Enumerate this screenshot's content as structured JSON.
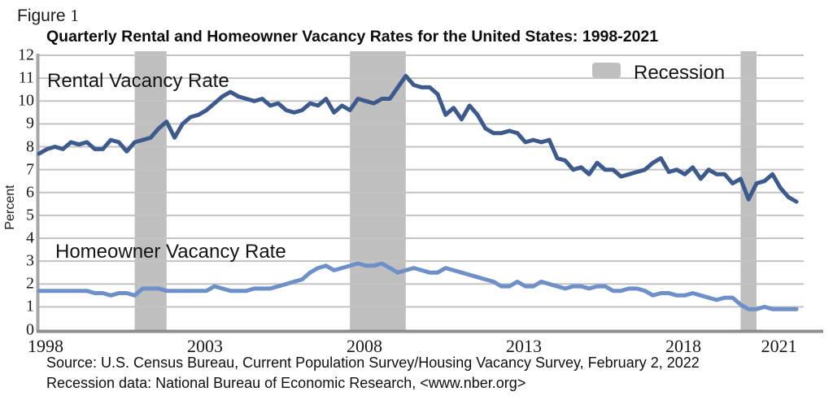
{
  "figure": {
    "label": "Figure",
    "number": "1"
  },
  "source": {
    "line1": "Source: U.S. Census Bureau, Current Population Survey/Housing Vacancy Survey, February 2, 2022",
    "line2": "Recession data: National Bureau of Economic Research, <www.nber.org>"
  },
  "colors": {
    "rental_line": "#3C5A8C",
    "homeowner_line": "#6E90C8",
    "recession_band": "#BFBFBF",
    "gridline": "#C3C3C3",
    "axis_left": "#A6A6A6",
    "axis_bottom": "#8C8C8C"
  },
  "chart_data": {
    "type": "line",
    "title": "Quarterly Rental and Homeowner Vacancy Rates for the United States: 1998-2021",
    "xlabel": "",
    "ylabel": "Percent",
    "ylim": [
      0,
      12
    ],
    "yticks": [
      0,
      1,
      2,
      3,
      4,
      5,
      6,
      7,
      8,
      9,
      10,
      11,
      12
    ],
    "xticks": [
      1998,
      2003,
      2008,
      2013,
      2018,
      2021
    ],
    "x_start_year": 1998,
    "points_per_year": 4,
    "x_range": "1998Q1-2021Q4",
    "grid": "horizontal",
    "legend_label": "Recession",
    "legend_position": "top-right-inside",
    "series": [
      {
        "name": "Rental Vacancy Rate",
        "values": [
          7.7,
          7.9,
          8.0,
          7.9,
          8.2,
          8.1,
          8.2,
          7.9,
          7.9,
          8.3,
          8.2,
          7.8,
          8.2,
          8.3,
          8.4,
          8.8,
          9.1,
          8.4,
          9.0,
          9.3,
          9.4,
          9.6,
          9.9,
          10.2,
          10.4,
          10.2,
          10.1,
          10.0,
          10.1,
          9.8,
          9.9,
          9.6,
          9.5,
          9.6,
          9.9,
          9.8,
          10.1,
          9.5,
          9.8,
          9.6,
          10.1,
          10.0,
          9.9,
          10.1,
          10.1,
          10.6,
          11.1,
          10.7,
          10.6,
          10.6,
          10.3,
          9.4,
          9.7,
          9.2,
          9.8,
          9.4,
          8.8,
          8.6,
          8.6,
          8.7,
          8.6,
          8.2,
          8.3,
          8.2,
          8.3,
          7.5,
          7.4,
          7.0,
          7.1,
          6.8,
          7.3,
          7.0,
          7.0,
          6.7,
          6.8,
          6.9,
          7.0,
          7.3,
          7.5,
          6.9,
          7.0,
          6.8,
          7.1,
          6.6,
          7.0,
          6.8,
          6.8,
          6.4,
          6.6,
          5.7,
          6.4,
          6.5,
          6.8,
          6.2,
          5.8,
          5.6
        ]
      },
      {
        "name": "Homeowner Vacancy Rate",
        "values": [
          1.7,
          1.7,
          1.7,
          1.7,
          1.7,
          1.7,
          1.7,
          1.6,
          1.6,
          1.5,
          1.6,
          1.6,
          1.5,
          1.8,
          1.8,
          1.8,
          1.7,
          1.7,
          1.7,
          1.7,
          1.7,
          1.7,
          1.9,
          1.8,
          1.7,
          1.7,
          1.7,
          1.8,
          1.8,
          1.8,
          1.9,
          2.0,
          2.1,
          2.2,
          2.5,
          2.7,
          2.8,
          2.6,
          2.7,
          2.8,
          2.9,
          2.8,
          2.8,
          2.9,
          2.7,
          2.5,
          2.6,
          2.7,
          2.6,
          2.5,
          2.5,
          2.7,
          2.6,
          2.5,
          2.4,
          2.3,
          2.2,
          2.1,
          1.9,
          1.9,
          2.1,
          1.9,
          1.9,
          2.1,
          2.0,
          1.9,
          1.8,
          1.9,
          1.9,
          1.8,
          1.9,
          1.9,
          1.7,
          1.7,
          1.8,
          1.8,
          1.7,
          1.5,
          1.6,
          1.6,
          1.5,
          1.5,
          1.6,
          1.5,
          1.4,
          1.3,
          1.4,
          1.4,
          1.1,
          0.9,
          0.9,
          1.0,
          0.9,
          0.9,
          0.9,
          0.9
        ]
      }
    ],
    "recessions": [
      {
        "start": "2001Q1",
        "end": "2001Q4"
      },
      {
        "start": "2007Q4",
        "end": "2009Q2"
      },
      {
        "start": "2020Q1",
        "end": "2020Q2"
      }
    ]
  }
}
